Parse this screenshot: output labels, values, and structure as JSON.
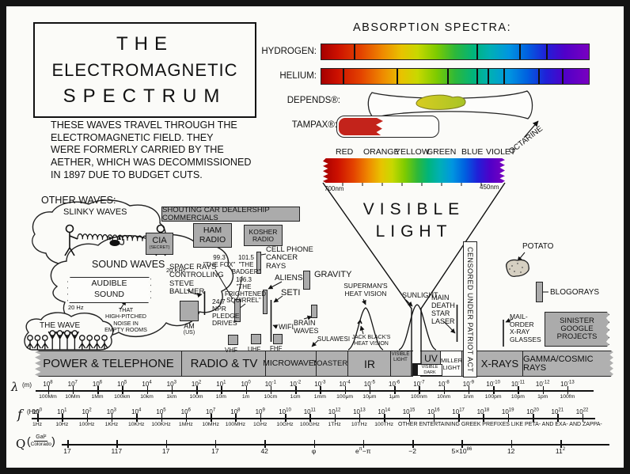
{
  "title": {
    "line1": "THE",
    "line2": "ELECTROMAGNETIC",
    "line3": "SPECTRUM"
  },
  "intro": "THESE WAVES TRAVEL THROUGH THE\nELECTROMAGNETIC FIELD. THEY\nWERE FORMERLY CARRIED BY THE\nAETHER, WHICH WAS DECOMMISSIONED\nIN 1897 DUE TO BUDGET CUTS.",
  "absorption": {
    "heading": "ABSORPTION SPECTRA:",
    "hydrogen": "HYDROGEN:",
    "helium": "HELIUM:",
    "depends": "DEPENDS®:",
    "tampax": "TAMPAX®:",
    "hydrogen_lines_pct": [
      12,
      58,
      74,
      84
    ],
    "helium_lines_pct": [
      8,
      28,
      47,
      58,
      62,
      68,
      81,
      90
    ]
  },
  "visible": {
    "colors": [
      "RED",
      "ORANGE",
      "YELLOW",
      "GREEN",
      "BLUE",
      "VIOLET"
    ],
    "octarine": "OCTARINE",
    "left_nm": "700nm",
    "right_nm": "450nm",
    "big_label": "VISIBLE\nLIGHT"
  },
  "labels": {
    "other_heading": "OTHER WAVES:",
    "slinky": "SLINKY WAVES",
    "sound": "SOUND WAVES",
    "audible": "AUDIBLE\nSOUND",
    "hz20": "20 Hz",
    "khz20": "20 KHz",
    "noise": "THAT\nHIGH-PITCHED\nNOISE IN\nEMPTY ROOMS",
    "the_wave": "THE WAVE",
    "shouting": "SHOUTING CAR DEALERSHIP COMMERCIALS",
    "cia": "CIA",
    "cia_sub": "(SECRET)",
    "ham": "HAM\nRADIO",
    "kosher": "KOSHER\nRADIO",
    "cell": "CELL PHONE\nCANCER RAYS",
    "space_rays": "SPACE RAYS\nCONTROLLING\nSTEVE BALLMER",
    "fox": "99.3\n\"THE FOX\"",
    "badger": "101.5\n\"THE\nBADGER\"",
    "squirrel": "106.3\n\"THE\nFRIGHTENED\nSQUIRREL\"",
    "npr": "24/7\nNPR\nPLEDGE\nDRIVES",
    "am": "AM",
    "am_sub": "(US)",
    "vhf": "VHF",
    "uhf": "UHF",
    "fhf": "FHF",
    "aliens": "ALIENS",
    "seti": "SETI",
    "wifi": "WIFI",
    "brain": "BRAIN\nWAVES",
    "sulawesi": "SULAWESI",
    "gravity": "GRAVITY",
    "superman": "SUPERMAN'S\nHEAT VISION",
    "jack": "JACK BLACK'S\nHEAT VISION",
    "sunlight": "SUNLIGHT",
    "deathstar": "MAIN\nDEATH\nSTAR\nLASER",
    "censored": "CENSORED UNDER PATRIOT ACT",
    "potato": "POTATO",
    "blogorays": "BLOGORAYS",
    "mailorder": "MAIL-\nORDER\nX-RAY\nGLASSES",
    "sinister": "SINISTER\nGOOGLE\nPROJECTS"
  },
  "bands": {
    "power": "POWER & TELEPHONE",
    "radio": "RADIO & TV",
    "micro": "MICROWAVES",
    "toasters": "TOASTERS",
    "ir": "IR",
    "visible_light": "VISIBLE\nLIGHT",
    "visible_dark": "VISIBLE\nDARK",
    "uv": "UV",
    "miller": "MILLER\nLIGHT",
    "xrays": "X-RAYS",
    "gamma": "GAMMA/COSMIC RAYS"
  },
  "axes": {
    "lambda": {
      "symbol": "λ",
      "unit": "(m)",
      "exponents": [
        8,
        7,
        6,
        5,
        4,
        3,
        2,
        1,
        0,
        -1,
        -2,
        -3,
        -4,
        -5,
        -6,
        -7,
        -8,
        -9,
        -10,
        -11,
        -12,
        -13
      ],
      "units": [
        "100Mm",
        "10Mm",
        "1Mm",
        "100km",
        "10km",
        "1km",
        "100m",
        "10m",
        "1m",
        "10cm",
        "1cm",
        "1mm",
        "100μm",
        "10μm",
        "1μm",
        "100nm",
        "10nm",
        "1nm",
        "100pm",
        "10pm",
        "1pm",
        "100fm"
      ]
    },
    "freq": {
      "symbol": "f",
      "unit": "(Hz)",
      "exponents": [
        0,
        1,
        2,
        3,
        4,
        5,
        6,
        7,
        8,
        9,
        10,
        11,
        12,
        13,
        14,
        15,
        16,
        17,
        18,
        19,
        20,
        21,
        22
      ],
      "units": [
        "1Hz",
        "10Hz",
        "100Hz",
        "1KHz",
        "10KHz",
        "100KHz",
        "1MHz",
        "10MHz",
        "100MHz",
        "1GHz",
        "10GHz",
        "100GHz",
        "1THz",
        "10THz",
        "100THz"
      ],
      "phrase": "OTHER ENTERTAINING GREEK PREFIXES LIKE PETA- AND EXA- AND ZAPPA-"
    },
    "q": {
      "symbol": "Q",
      "unit_num": "Gal²",
      "unit_den": "Colorado",
      "values": [
        {
          "b": "17"
        },
        {
          "b": "117"
        },
        {
          "b": "17"
        },
        {
          "b": "17"
        },
        {
          "b": "42"
        },
        {
          "b": "φ"
        },
        {
          "b": "e",
          "s": "π",
          "a": "−π"
        },
        {
          "b": "−2"
        },
        {
          "b": "5×10",
          "s": "86"
        },
        {
          "b": "12"
        },
        {
          "b": "11",
          "s": "2"
        }
      ]
    }
  },
  "colors_theme": {
    "box_gray": "#ababab",
    "band_gray": "#b0b0b0",
    "tampax_red": "#c3231b",
    "depends_yellow": "#c9c832",
    "ink": "#111111",
    "paper": "#fbfbf8"
  }
}
